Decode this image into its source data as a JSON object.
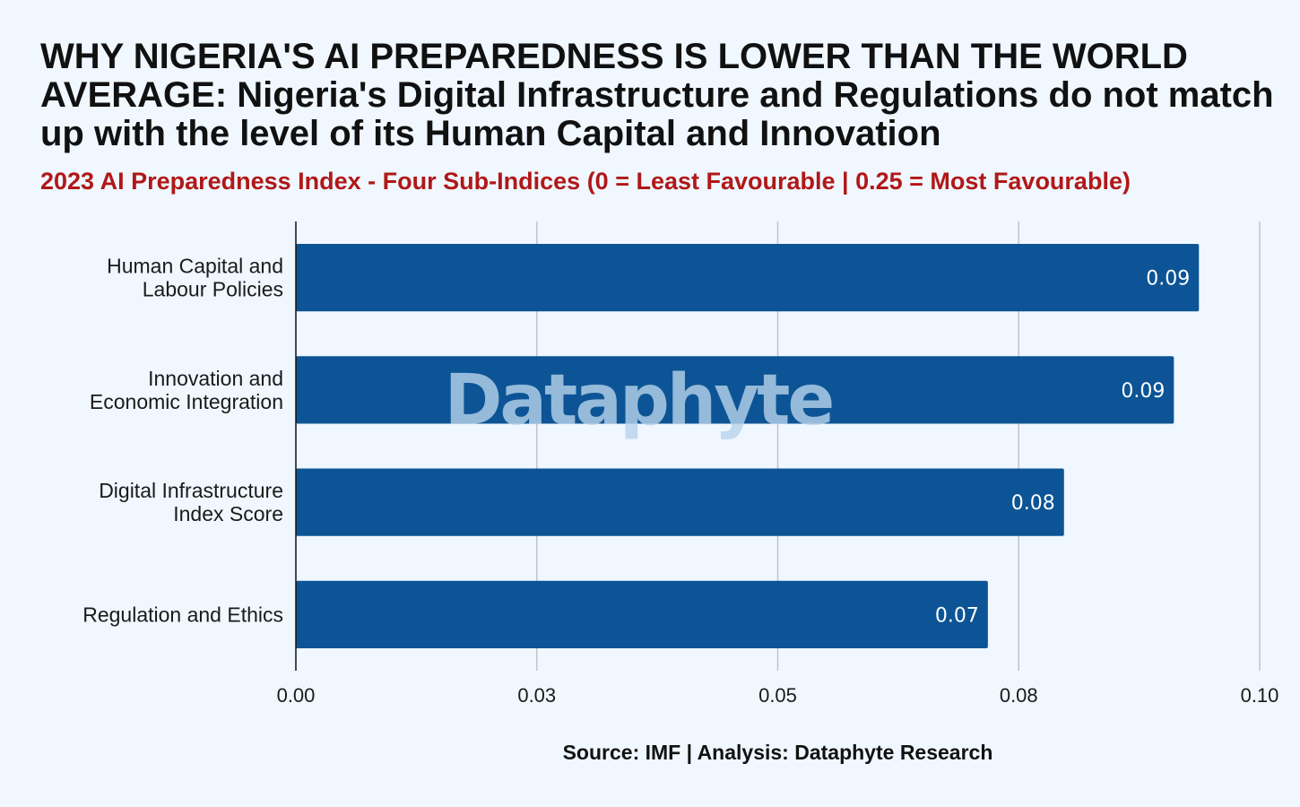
{
  "header": {
    "title": "WHY NIGERIA'S AI PREPAREDNESS IS LOWER THAN THE WORLD AVERAGE: Nigeria's Digital Infrastructure and Regulations do not match up with the level of its Human Capital and Innovation",
    "subtitle": "2023 AI Preparedness Index - Four Sub-Indices (0 = Least Favourable | 0.25 = Most Favourable)"
  },
  "footer": {
    "source": "Source: IMF | Analysis: Dataphyte Research"
  },
  "watermark": "Dataphyte",
  "colors": {
    "bar": "#0c5495",
    "grid": "#c4c4c4",
    "axis": "#111111",
    "subtitle": "#b01818",
    "background": "#f0f7ff"
  },
  "chart_data": {
    "type": "bar",
    "orientation": "horizontal",
    "categories": [
      [
        "Human Capital and",
        "Labour Policies"
      ],
      [
        "Innovation and",
        "Economic Integration"
      ],
      [
        "Digital Infrastructure",
        "Index Score"
      ],
      [
        "Regulation and Ethics"
      ]
    ],
    "values": [
      0.0937,
      0.0911,
      0.0797,
      0.0718
    ],
    "data_labels": [
      "0.09",
      "0.09",
      "0.08",
      "0.07"
    ],
    "xlim": [
      0,
      0.1
    ],
    "xticks": [
      0,
      0.025,
      0.05,
      0.075,
      0.1
    ],
    "xtick_labels": [
      "0.00",
      "0.03",
      "0.05",
      "0.08",
      "0.10"
    ],
    "grid": true
  }
}
